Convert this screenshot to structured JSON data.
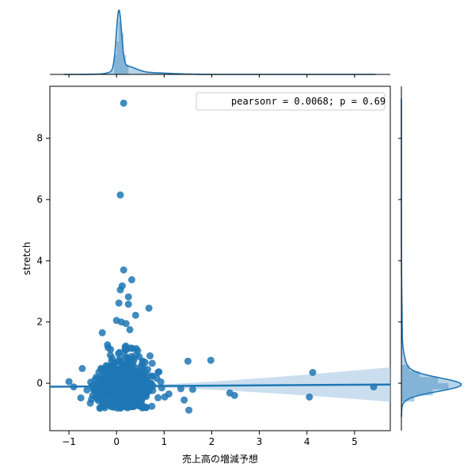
{
  "chart_data": {
    "type": "scatter",
    "title": "",
    "xlabel": "売上高の増減予想",
    "ylabel": "stretch",
    "xlim": [
      -1.4,
      5.75
    ],
    "ylim": [
      -1.55,
      9.7
    ],
    "xticks": [
      -1,
      0,
      1,
      2,
      3,
      4,
      5
    ],
    "yticks": [
      0,
      2,
      4,
      6,
      8
    ],
    "annotation": "pearsonr = 0.0068; p = 0.69",
    "regression": {
      "intercept": -0.1,
      "slope": 0.01
    },
    "colors": {
      "points": "#1f77b4",
      "line": "#1f77b4",
      "ci": "#a6c8e4"
    },
    "outliers": [
      [
        0.15,
        9.15
      ],
      [
        0.08,
        6.15
      ],
      [
        0.15,
        3.7
      ],
      [
        0.32,
        3.38
      ],
      [
        0.12,
        3.18
      ],
      [
        0.08,
        3.05
      ],
      [
        0.25,
        2.82
      ],
      [
        0.05,
        2.62
      ],
      [
        0.25,
        2.58
      ],
      [
        0.68,
        2.45
      ],
      [
        0.4,
        2.22
      ],
      [
        0.0,
        2.05
      ],
      [
        0.1,
        2.0
      ],
      [
        0.2,
        1.95
      ],
      [
        0.28,
        1.75
      ],
      [
        -0.3,
        1.65
      ],
      [
        0.55,
        0.72
      ],
      [
        0.6,
        0.68
      ],
      [
        0.75,
        0.65
      ],
      [
        1.5,
        0.72
      ],
      [
        1.98,
        0.75
      ],
      [
        4.12,
        0.35
      ],
      [
        -0.72,
        0.48
      ],
      [
        -1.0,
        0.05
      ],
      [
        -0.9,
        -0.12
      ],
      [
        -0.62,
        -0.22
      ],
      [
        2.38,
        -0.32
      ],
      [
        2.48,
        -0.4
      ],
      [
        4.05,
        -0.45
      ],
      [
        5.4,
        -0.12
      ],
      [
        1.52,
        -0.88
      ],
      [
        1.42,
        -0.55
      ],
      [
        1.6,
        -0.2
      ],
      [
        1.35,
        -0.18
      ],
      [
        -0.55,
        -0.65
      ],
      [
        -0.75,
        -0.48
      ],
      [
        -0.45,
        0.12
      ],
      [
        -0.5,
        -0.4
      ],
      [
        1.1,
        -0.35
      ],
      [
        0.95,
        -0.15
      ]
    ]
  }
}
